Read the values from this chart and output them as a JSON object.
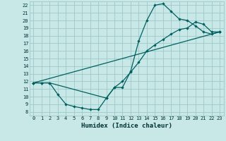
{
  "title": "",
  "xlabel": "Humidex (Indice chaleur)",
  "ylabel": "",
  "background_color": "#c8e8e8",
  "grid_color": "#a0c8c8",
  "line_color": "#006060",
  "xlim": [
    -0.5,
    23.5
  ],
  "ylim": [
    7.5,
    22.5
  ],
  "xticks": [
    0,
    1,
    2,
    3,
    4,
    5,
    6,
    7,
    8,
    9,
    10,
    11,
    12,
    13,
    14,
    15,
    16,
    17,
    18,
    19,
    20,
    21,
    22,
    23
  ],
  "yticks": [
    8,
    9,
    10,
    11,
    12,
    13,
    14,
    15,
    16,
    17,
    18,
    19,
    20,
    21,
    22
  ],
  "line1_x": [
    0,
    1,
    2,
    3,
    4,
    5,
    6,
    7,
    8,
    9,
    10,
    11,
    12,
    13,
    14,
    15,
    16,
    17,
    18,
    19,
    20,
    21,
    22,
    23
  ],
  "line1_y": [
    11.8,
    11.8,
    11.8,
    10.3,
    9.0,
    8.7,
    8.5,
    8.3,
    8.3,
    9.8,
    11.2,
    11.2,
    13.3,
    17.3,
    20.0,
    22.0,
    22.2,
    21.2,
    20.2,
    20.0,
    19.3,
    18.5,
    18.2,
    18.5
  ],
  "line2_x": [
    0,
    1,
    2,
    9,
    10,
    11,
    12,
    13,
    14,
    15,
    16,
    17,
    18,
    19,
    20,
    21,
    22,
    23
  ],
  "line2_y": [
    11.8,
    11.8,
    11.8,
    9.8,
    11.2,
    12.0,
    13.2,
    14.5,
    16.0,
    16.8,
    17.5,
    18.2,
    18.8,
    19.0,
    19.8,
    19.5,
    18.5,
    18.5
  ],
  "line3_x": [
    0,
    23
  ],
  "line3_y": [
    11.8,
    18.5
  ],
  "xlabel_fontsize": 6.5,
  "tick_fontsize": 5.0
}
